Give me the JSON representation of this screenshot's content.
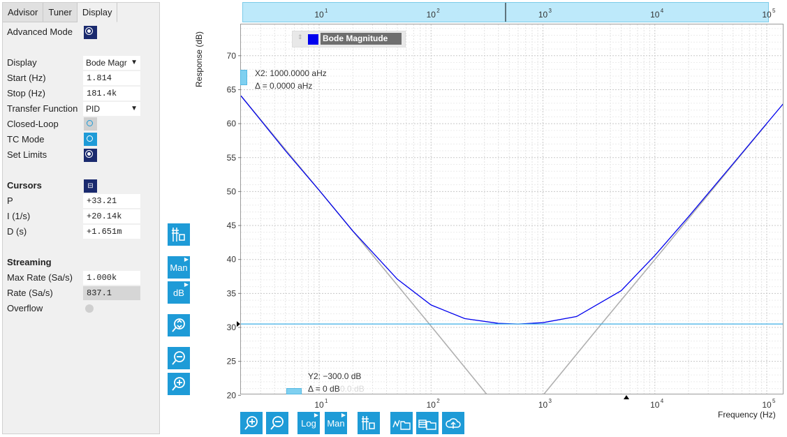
{
  "tabs": [
    "Advisor",
    "Tuner",
    "Display"
  ],
  "settings": {
    "advanced_mode": "Advanced Mode",
    "display_label": "Display",
    "display_value": "Bode Magr",
    "start_label": "Start (Hz)",
    "start_value": "1.814",
    "stop_label": "Stop (Hz)",
    "stop_value": "181.4k",
    "tf_label": "Transfer Function",
    "tf_value": "PID",
    "closed_loop": "Closed-Loop",
    "tc_mode": "TC Mode",
    "set_limits": "Set Limits"
  },
  "cursors": {
    "title": "Cursors",
    "p_label": "P",
    "p_value": "+33.21",
    "i_label": "I (1/s)",
    "i_value": "+20.14k",
    "d_label": "D (s)",
    "d_value": "+1.651m"
  },
  "streaming": {
    "title": "Streaming",
    "max_rate_label": "Max Rate (Sa/s)",
    "max_rate_value": "1.000k",
    "rate_label": "Rate (Sa/s)",
    "rate_value": "837.1",
    "overflow_label": "Overflow"
  },
  "tool_buttons": {
    "man": "Man",
    "db": "dB",
    "log": "Log"
  },
  "plot": {
    "y_axis_label": "Response (dB)",
    "x_axis_label": "Frequency (Hz)",
    "y_ticks": [
      "70",
      "65",
      "60",
      "55",
      "50",
      "45",
      "40",
      "35",
      "30",
      "25",
      "20"
    ],
    "x_ticks": [
      "10",
      "10",
      "10",
      "10",
      "10"
    ],
    "x_tick_exp": [
      "1",
      "2",
      "3",
      "4",
      "5"
    ],
    "legend": "Bode Magnitude",
    "legend_color": "#0000ee",
    "cursor_x": "X2: 1000.0000 aHz",
    "cursor_x_delta": "Δ = 0.0000 aHz",
    "cursor_y": "Y2: −300.0 dB",
    "cursor_y_delta": "Δ = 0 dB",
    "cursor_y_delta_ghost": "0.0 dB"
  },
  "chart_data": {
    "type": "line",
    "x_scale": "log",
    "xlim": [
      2.0,
      140000
    ],
    "ylim": [
      20,
      74
    ],
    "xlabel": "Frequency (Hz)",
    "ylabel": "Response (dB)",
    "grid": true,
    "series": [
      {
        "name": "Bode Magnitude",
        "color": "#0000ee",
        "x": [
          2,
          5,
          10,
          20,
          50,
          100,
          200,
          400,
          600,
          1000,
          2000,
          5000,
          10000,
          20000,
          50000,
          140000
        ],
        "y": [
          64.1,
          56.0,
          50.2,
          44.2,
          37.1,
          33.3,
          31.3,
          30.6,
          30.5,
          30.7,
          31.6,
          35.4,
          40.6,
          46.3,
          54.1,
          62.9
        ]
      },
      {
        "name": "",
        "color": "#b0b0b0",
        "x": [
          2,
          10,
          100,
          320
        ],
        "y": [
          64.1,
          50.2,
          30.2,
          20.0
        ]
      },
      {
        "name": "",
        "color": "#b0b0b0",
        "x": [
          1000,
          3000,
          10000,
          100000
        ],
        "y": [
          20.0,
          29.6,
          40.0,
          60.0
        ]
      }
    ],
    "cursor_y_value": 30.5
  }
}
